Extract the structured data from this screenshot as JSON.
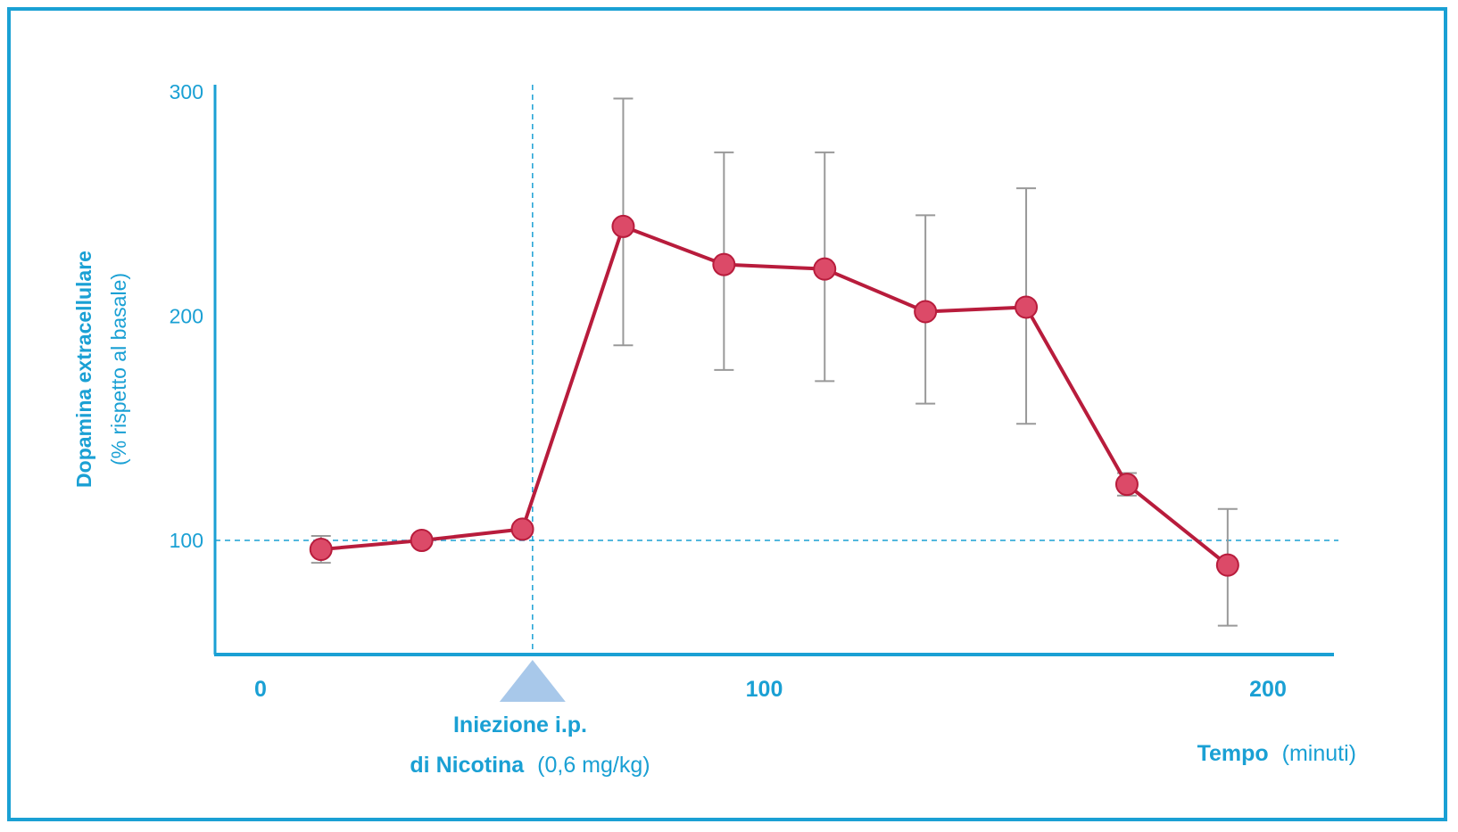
{
  "chart_data": {
    "type": "line",
    "ylabel": "Dopamina extracellulare",
    "ylabel_unit": "(% rispetto al basale)",
    "xlabel": "Tempo",
    "xlabel_unit": "(minuti)",
    "xticks": [
      0,
      100,
      200
    ],
    "yticks": [
      100,
      200,
      300
    ],
    "xlim": [
      -10,
      215
    ],
    "ylim": [
      50,
      300
    ],
    "baseline": 100,
    "injection": {
      "x": 54,
      "label_line1_bold": "Iniezione i.p.",
      "label_line2_bold": "di Nicotina",
      "label_line2_rest": "(0,6 mg/kg)"
    },
    "series": [
      {
        "color": "#b81c3c",
        "marker_color": "#dc4a68",
        "errorbar_color": "#999999",
        "points": [
          {
            "x": 12,
            "y": 96,
            "err_low": 90,
            "err_high": 102
          },
          {
            "x": 32,
            "y": 100,
            "err_low": 100,
            "err_high": 100
          },
          {
            "x": 52,
            "y": 105,
            "err_low": 105,
            "err_high": 105
          },
          {
            "x": 72,
            "y": 240,
            "err_low": 187,
            "err_high": 297
          },
          {
            "x": 92,
            "y": 223,
            "err_low": 176,
            "err_high": 273
          },
          {
            "x": 112,
            "y": 221,
            "err_low": 171,
            "err_high": 273
          },
          {
            "x": 132,
            "y": 202,
            "err_low": 161,
            "err_high": 245
          },
          {
            "x": 152,
            "y": 204,
            "err_low": 152,
            "err_high": 257
          },
          {
            "x": 172,
            "y": 125,
            "err_low": 120,
            "err_high": 130
          },
          {
            "x": 192,
            "y": 89,
            "err_low": 62,
            "err_high": 114
          }
        ]
      }
    ]
  }
}
